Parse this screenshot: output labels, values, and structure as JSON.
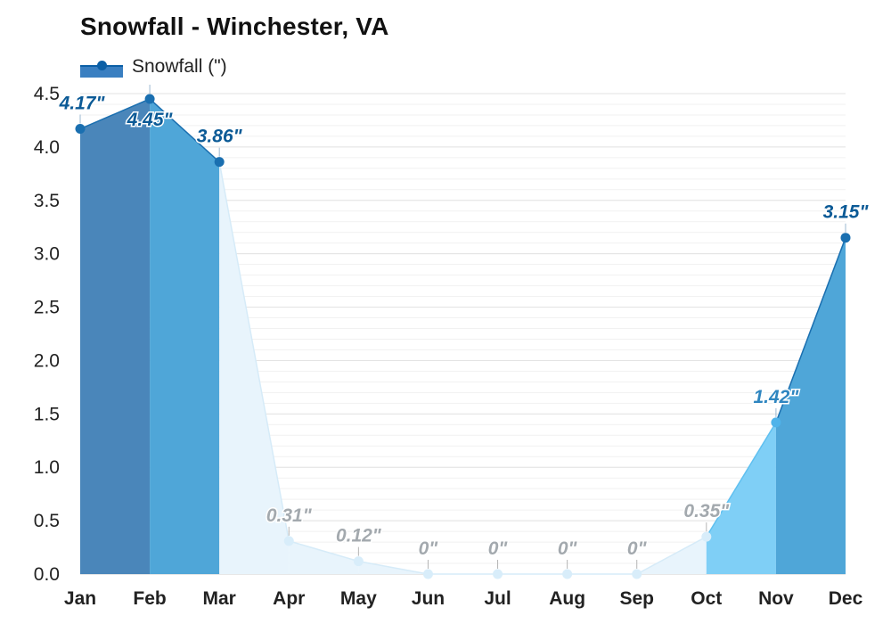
{
  "chart_data": {
    "type": "area",
    "title": "Snowfall - Winchester, VA",
    "legend": {
      "entries": [
        "Snowfall (\")"
      ],
      "position": "top-left"
    },
    "categories": [
      "Jan",
      "Feb",
      "Mar",
      "Apr",
      "May",
      "Jun",
      "Jul",
      "Aug",
      "Sep",
      "Oct",
      "Nov",
      "Dec"
    ],
    "series": [
      {
        "name": "Snowfall (\")",
        "values": [
          4.17,
          4.45,
          3.86,
          0.31,
          0.12,
          0,
          0,
          0,
          0,
          0.35,
          1.42,
          3.15
        ],
        "data_labels": [
          "4.17\"",
          "4.45\"",
          "3.86\"",
          "0.31\"",
          "0.12\"",
          "0\"",
          "0\"",
          "0\"",
          "0\"",
          "0.35\"",
          "1.42\"",
          "3.15\""
        ]
      }
    ],
    "ylim": [
      0,
      4.5
    ],
    "yticks": [
      "0.0",
      "0.5",
      "1.0",
      "1.5",
      "2.0",
      "2.5",
      "3.0",
      "3.5",
      "4.0",
      "4.5"
    ],
    "xlabel": "",
    "ylabel": "",
    "grid": true,
    "colors": {
      "line": "#1a6fb0",
      "jan_fill": "#4a86ba",
      "heavy_fill": "#4fa6d8",
      "medium_fill": "#7fcff6",
      "light_fill": "#e8f4fc",
      "heavy_label": "#0b5a96",
      "medium_label": "#2f86c0",
      "light_label": "#a3a9ae",
      "grid": "#e3e3e3"
    }
  }
}
